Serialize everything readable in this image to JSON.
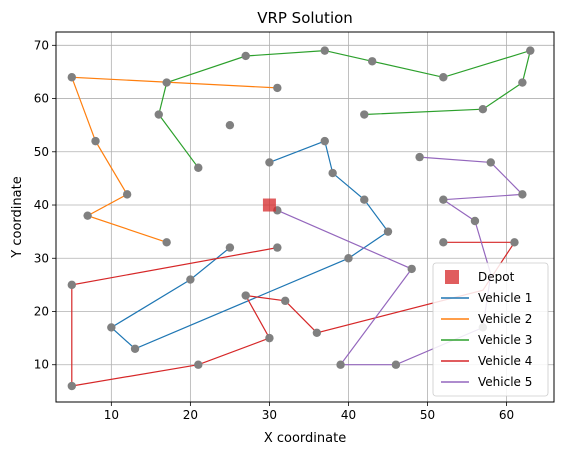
{
  "chart_data": {
    "type": "scatter",
    "title": "VRP Solution",
    "xlabel": "X coordinate",
    "ylabel": "Y coordinate",
    "xlim": [
      3,
      66
    ],
    "ylim": [
      3,
      72.5
    ],
    "xticks": [
      10,
      20,
      30,
      40,
      50,
      60
    ],
    "yticks": [
      10,
      20,
      30,
      40,
      50,
      60,
      70
    ],
    "grid": true,
    "legend_position": "lower-right",
    "point_color": "#808080",
    "depot": {
      "name": "Depot",
      "x": 30,
      "y": 40,
      "color": "#d62728"
    },
    "customers": [
      [
        5,
        64
      ],
      [
        17,
        63
      ],
      [
        31,
        62
      ],
      [
        8,
        52
      ],
      [
        12,
        42
      ],
      [
        7,
        38
      ],
      [
        17,
        33
      ],
      [
        27,
        68
      ],
      [
        37,
        69
      ],
      [
        43,
        67
      ],
      [
        52,
        64
      ],
      [
        63,
        69
      ],
      [
        62,
        63
      ],
      [
        57,
        58
      ],
      [
        42,
        57
      ],
      [
        16,
        57
      ],
      [
        21,
        47
      ],
      [
        25,
        55
      ],
      [
        30,
        48
      ],
      [
        37,
        52
      ],
      [
        38,
        46
      ],
      [
        42,
        41
      ],
      [
        45,
        35
      ],
      [
        40,
        30
      ],
      [
        25,
        32
      ],
      [
        20,
        26
      ],
      [
        10,
        17
      ],
      [
        13,
        13
      ],
      [
        31,
        32
      ],
      [
        5,
        25
      ],
      [
        5,
        6
      ],
      [
        21,
        10
      ],
      [
        30,
        15
      ],
      [
        27,
        23
      ],
      [
        32,
        22
      ],
      [
        36,
        16
      ],
      [
        52,
        33
      ],
      [
        61,
        33
      ],
      [
        31,
        39
      ],
      [
        48,
        28
      ],
      [
        39,
        10
      ],
      [
        46,
        10
      ],
      [
        57,
        17
      ],
      [
        52,
        41
      ],
      [
        62,
        42
      ],
      [
        58,
        48
      ],
      [
        49,
        49
      ],
      [
        56,
        37
      ]
    ],
    "series": [
      {
        "name": "Vehicle 1",
        "color": "#1f77b4",
        "points": [
          [
            30,
            48
          ],
          [
            37,
            52
          ],
          [
            38,
            46
          ],
          [
            42,
            41
          ],
          [
            45,
            35
          ],
          [
            40,
            30
          ],
          [
            13,
            13
          ],
          [
            10,
            17
          ],
          [
            20,
            26
          ],
          [
            25,
            32
          ]
        ]
      },
      {
        "name": "Vehicle 2",
        "color": "#ff7f0e",
        "points": [
          [
            31,
            62
          ],
          [
            5,
            64
          ],
          [
            8,
            52
          ],
          [
            12,
            42
          ],
          [
            7,
            38
          ],
          [
            17,
            33
          ]
        ]
      },
      {
        "name": "Vehicle 3",
        "color": "#2ca02c",
        "points": [
          [
            21,
            47
          ],
          [
            16,
            57
          ],
          [
            17,
            63
          ],
          [
            27,
            68
          ],
          [
            37,
            69
          ],
          [
            43,
            67
          ],
          [
            52,
            64
          ],
          [
            63,
            69
          ],
          [
            62,
            63
          ],
          [
            57,
            58
          ],
          [
            42,
            57
          ]
        ]
      },
      {
        "name": "Vehicle 4",
        "color": "#d62728",
        "points": [
          [
            31,
            32
          ],
          [
            5,
            25
          ],
          [
            5,
            6
          ],
          [
            21,
            10
          ],
          [
            30,
            15
          ],
          [
            27,
            23
          ],
          [
            32,
            22
          ],
          [
            36,
            16
          ],
          [
            57,
            24
          ],
          [
            61,
            33
          ],
          [
            52,
            33
          ]
        ]
      },
      {
        "name": "Vehicle 5",
        "color": "#9467bd",
        "points": [
          [
            31,
            39
          ],
          [
            48,
            28
          ],
          [
            39,
            10
          ],
          [
            46,
            10
          ],
          [
            57,
            17
          ],
          [
            58,
            27
          ],
          [
            56,
            37
          ],
          [
            52,
            41
          ],
          [
            62,
            42
          ],
          [
            58,
            48
          ],
          [
            49,
            49
          ]
        ]
      }
    ]
  }
}
